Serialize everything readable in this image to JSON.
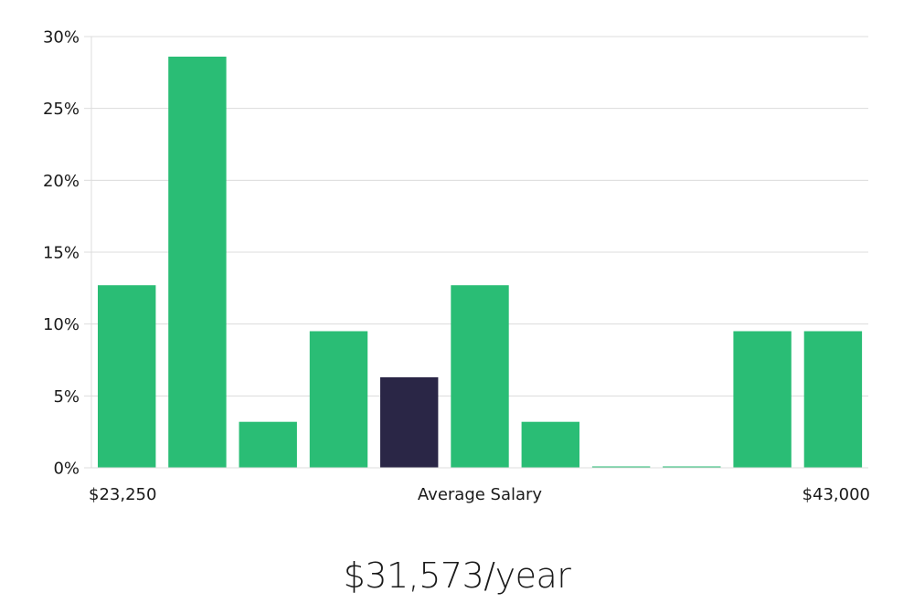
{
  "chart_data": {
    "type": "bar",
    "title": "",
    "xlabel": "Average Salary",
    "ylabel": "",
    "ylim": [
      0,
      30
    ],
    "y_ticks": [
      0,
      5,
      10,
      15,
      20,
      25,
      30
    ],
    "y_tick_labels": [
      "0%",
      "5%",
      "10%",
      "15%",
      "20%",
      "25%",
      "30%"
    ],
    "x_label_left": "$23,250",
    "x_label_right": "$43,000",
    "values": [
      12.7,
      28.6,
      3.2,
      9.5,
      6.3,
      12.7,
      3.2,
      0,
      0,
      9.5,
      9.5
    ],
    "highlight_index": 4,
    "colors": {
      "bar": "#2abd75",
      "highlight": "#2a2646",
      "grid": "#dcdcdc"
    },
    "grid": true
  },
  "summary": {
    "salary_text": "$31,573/year"
  }
}
